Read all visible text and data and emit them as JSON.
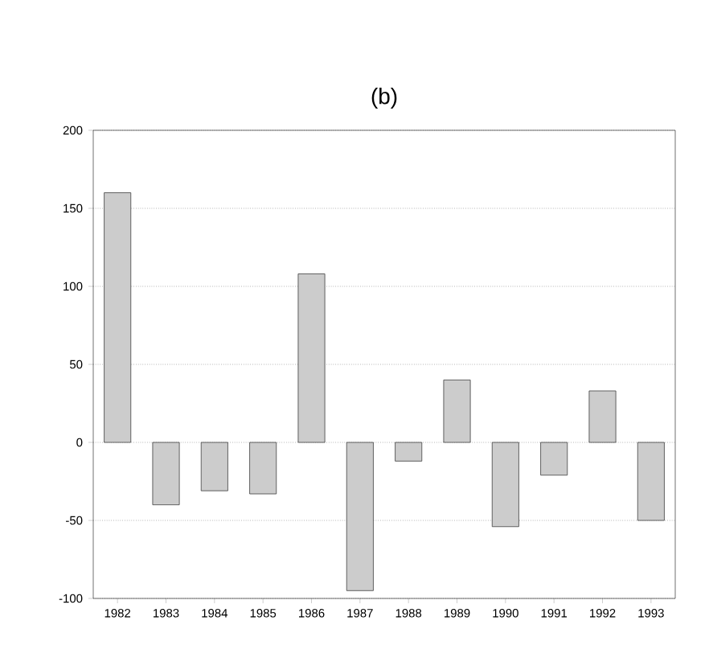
{
  "chart_data": {
    "type": "bar",
    "title": "(b)",
    "categories": [
      "1982",
      "1983",
      "1984",
      "1985",
      "1986",
      "1987",
      "1988",
      "1989",
      "1990",
      "1991",
      "1992",
      "1993"
    ],
    "values": [
      160,
      -40,
      -31,
      -33,
      108,
      -95,
      -12,
      40,
      -54,
      -21,
      33,
      -50
    ],
    "color": "#cccccc",
    "ylim": [
      -100,
      200
    ],
    "yticks": [
      -100,
      -50,
      0,
      50,
      100,
      150,
      200
    ],
    "grid": "y"
  }
}
